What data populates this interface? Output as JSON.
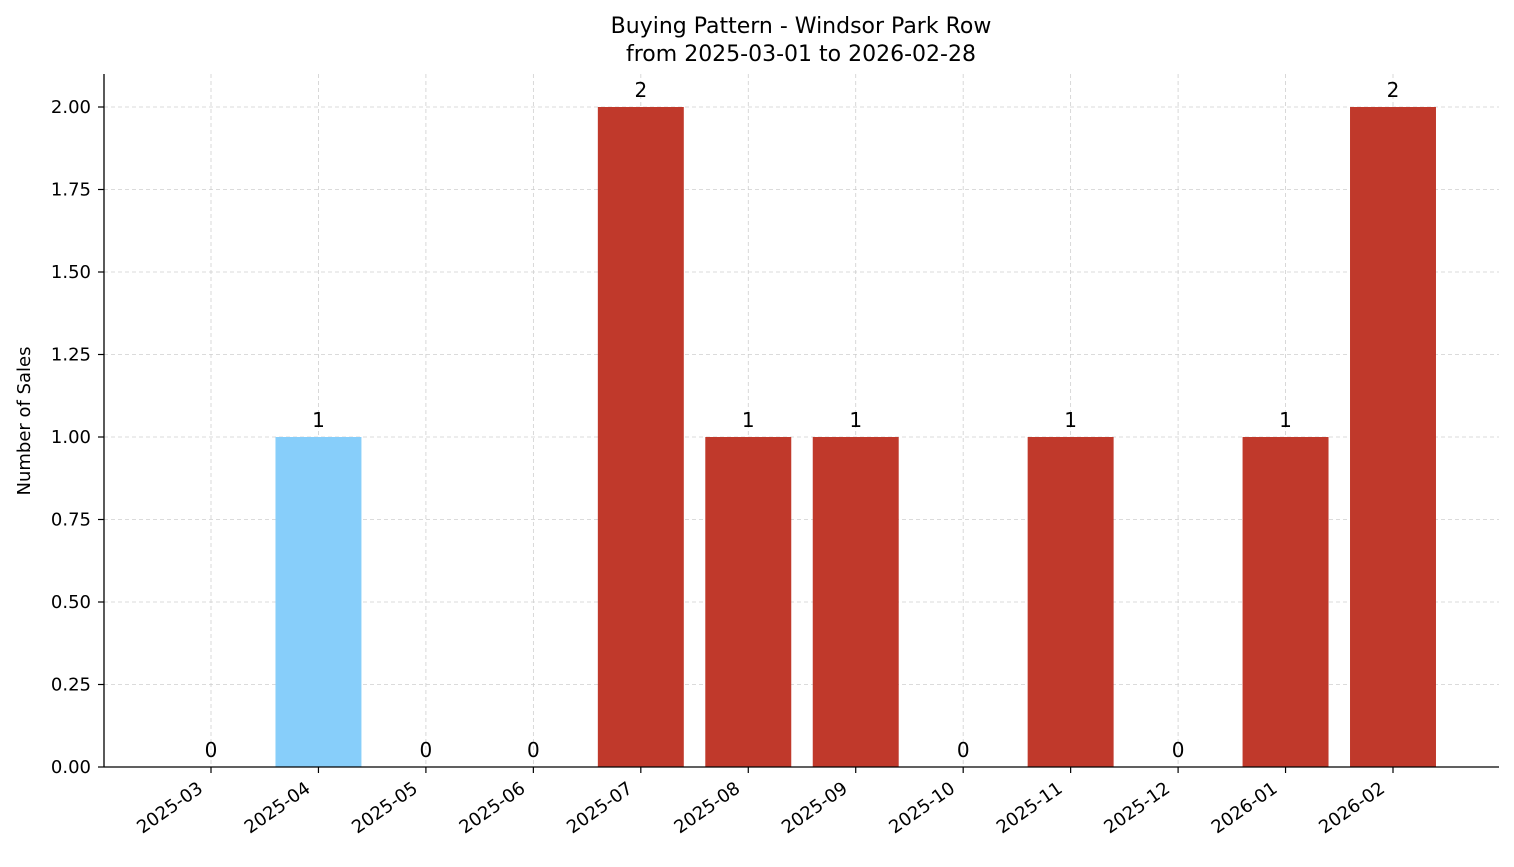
{
  "chart_data": {
    "type": "bar",
    "title": "Buying Pattern - Windsor Park Row",
    "subtitle": "from 2025-03-01 to 2026-02-28",
    "xlabel": "",
    "ylabel": "Number of Sales",
    "categories": [
      "2025-03",
      "2025-04",
      "2025-05",
      "2025-06",
      "2025-07",
      "2025-08",
      "2025-09",
      "2025-10",
      "2025-11",
      "2025-12",
      "2026-01",
      "2026-02"
    ],
    "values": [
      0,
      1,
      0,
      0,
      2,
      1,
      1,
      0,
      1,
      0,
      1,
      2
    ],
    "data_labels": [
      "0",
      "1",
      "0",
      "0",
      "2",
      "1",
      "1",
      "0",
      "1",
      "0",
      "1",
      "2"
    ],
    "bar_colors": [
      "#c0392b",
      "#87cefa",
      "#c0392b",
      "#c0392b",
      "#c0392b",
      "#c0392b",
      "#c0392b",
      "#c0392b",
      "#c0392b",
      "#c0392b",
      "#c0392b",
      "#c0392b"
    ],
    "ylim": [
      0,
      2.1
    ],
    "yticks": [
      0,
      0.25,
      0.5,
      0.75,
      1.0,
      1.25,
      1.5,
      1.75,
      2.0
    ],
    "ytick_labels": [
      "0.00",
      "0.25",
      "0.50",
      "0.75",
      "1.00",
      "1.25",
      "1.50",
      "1.75",
      "2.00"
    ],
    "grid": true,
    "legend": "none"
  }
}
